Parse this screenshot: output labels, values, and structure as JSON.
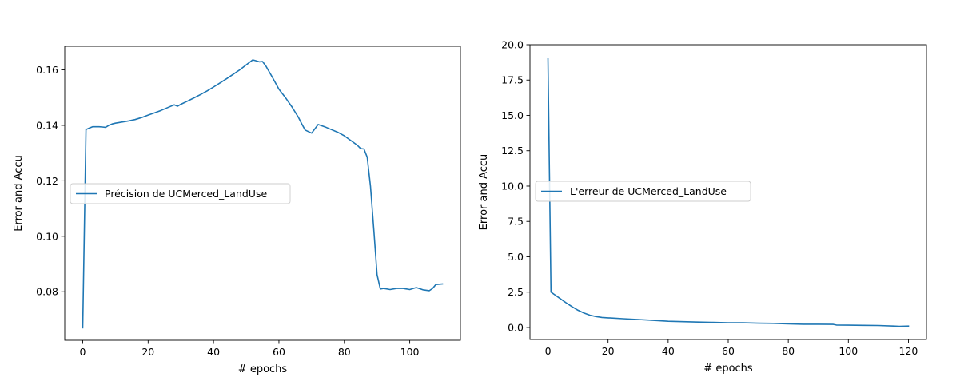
{
  "chart_data": [
    {
      "type": "line",
      "title": "",
      "xlabel": "# epochs",
      "ylabel": "Error and Accu",
      "xlim": [
        -5.5,
        115.5
      ],
      "ylim": [
        0.0625,
        0.1685
      ],
      "xticks": [
        0,
        20,
        40,
        60,
        80,
        100
      ],
      "yticks": [
        0.08,
        0.1,
        0.12,
        0.14,
        0.16
      ],
      "ytick_labels": [
        "0.08",
        "0.10",
        "0.12",
        "0.14",
        "0.16"
      ],
      "grid": false,
      "legend": {
        "position": "center-left",
        "entries": [
          "Précision de UCMerced_LandUse"
        ]
      },
      "series": [
        {
          "name": "Précision de UCMerced_LandUse",
          "color": "#1f77b4",
          "x": [
            0,
            1,
            2,
            3,
            4,
            5,
            6,
            7,
            8,
            9,
            10,
            12,
            14,
            16,
            18,
            20,
            22,
            24,
            26,
            28,
            29,
            30,
            32,
            34,
            36,
            38,
            40,
            42,
            44,
            46,
            48,
            50,
            52,
            53,
            54,
            55,
            56,
            58,
            60,
            62,
            64,
            66,
            67,
            68,
            70,
            72,
            74,
            76,
            78,
            80,
            82,
            84,
            85,
            86,
            87,
            88,
            89,
            90,
            91,
            92,
            94,
            96,
            98,
            100,
            102,
            104,
            106,
            107,
            108,
            110
          ],
          "y": [
            0.067,
            0.1385,
            0.139,
            0.1395,
            0.1395,
            0.1395,
            0.1394,
            0.1393,
            0.14,
            0.1405,
            0.1408,
            0.1412,
            0.1416,
            0.1421,
            0.1428,
            0.1437,
            0.1445,
            0.1454,
            0.1464,
            0.1474,
            0.1469,
            0.1476,
            0.1487,
            0.1499,
            0.1511,
            0.1524,
            0.1538,
            0.1553,
            0.1568,
            0.1584,
            0.16,
            0.1618,
            0.1636,
            0.1633,
            0.1629,
            0.163,
            0.1614,
            0.1573,
            0.153,
            0.15,
            0.1466,
            0.1428,
            0.1405,
            0.1383,
            0.1372,
            0.1403,
            0.1395,
            0.1385,
            0.1375,
            0.1362,
            0.1345,
            0.1328,
            0.1316,
            0.1315,
            0.1285,
            0.118,
            0.1025,
            0.0862,
            0.081,
            0.0812,
            0.0808,
            0.0812,
            0.0812,
            0.0808,
            0.0815,
            0.0807,
            0.0804,
            0.0812,
            0.0826,
            0.0828
          ]
        }
      ]
    },
    {
      "type": "line",
      "title": "",
      "xlabel": "# epochs",
      "ylabel": "Error and Accu",
      "xlim": [
        -6,
        126
      ],
      "ylim": [
        -0.85,
        20.0
      ],
      "xticks": [
        0,
        20,
        40,
        60,
        80,
        100,
        120
      ],
      "yticks": [
        0.0,
        2.5,
        5.0,
        7.5,
        10.0,
        12.5,
        15.0,
        17.5,
        20.0
      ],
      "ytick_labels": [
        "0.0",
        "2.5",
        "5.0",
        "7.5",
        "10.0",
        "12.5",
        "15.0",
        "17.5",
        "20.0"
      ],
      "grid": false,
      "legend": {
        "position": "center-left",
        "entries": [
          "L'erreur de UCMerced_LandUse"
        ]
      },
      "series": [
        {
          "name": "L'erreur de UCMerced_LandUse",
          "color": "#1f77b4",
          "x": [
            0,
            1,
            2,
            4,
            6,
            8,
            10,
            12,
            14,
            16,
            18,
            20,
            25,
            30,
            35,
            40,
            45,
            50,
            55,
            60,
            65,
            70,
            75,
            80,
            85,
            90,
            95,
            96,
            100,
            105,
            110,
            115,
            117,
            120
          ],
          "y": [
            19.05,
            2.5,
            2.35,
            2.05,
            1.75,
            1.47,
            1.22,
            1.02,
            0.87,
            0.77,
            0.71,
            0.68,
            0.62,
            0.56,
            0.5,
            0.44,
            0.41,
            0.38,
            0.36,
            0.33,
            0.33,
            0.3,
            0.29,
            0.25,
            0.23,
            0.23,
            0.22,
            0.17,
            0.16,
            0.15,
            0.14,
            0.1,
            0.08,
            0.1
          ]
        }
      ]
    }
  ]
}
